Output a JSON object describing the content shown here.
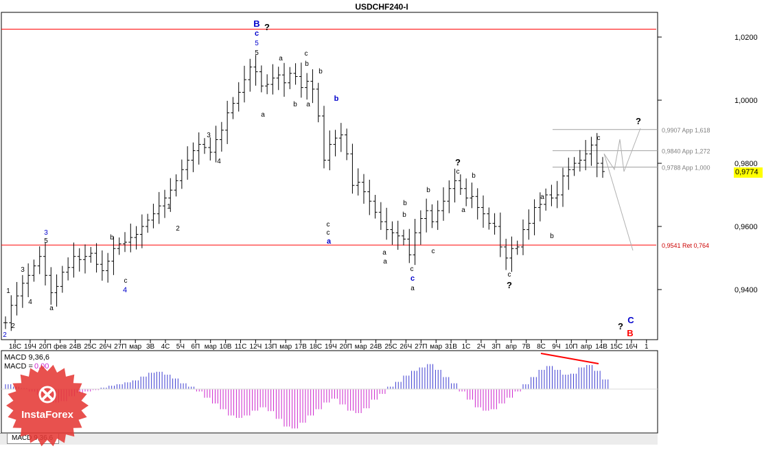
{
  "window": {
    "title": "USDCHF240-I"
  },
  "chart_data": [
    {
      "type": "candlestick",
      "title": "USDCHF240-I",
      "ylim": [
        0.93,
        1.01
      ],
      "y_ticks": [
        "1,0200",
        "1,0000",
        "0,9800",
        "0,9600",
        "0,9400"
      ],
      "x_ticks": [
        "18C",
        "19Ч",
        "20П",
        "фев",
        "24В",
        "25С",
        "26Ч",
        "27П",
        "мар",
        "3В",
        "4С",
        "5Ч",
        "6П",
        "мар",
        "10В",
        "11С",
        "12Ч",
        "13П",
        "мар",
        "17В",
        "18С",
        "19Ч",
        "20П",
        "мар",
        "24В",
        "25С",
        "26Ч",
        "27П",
        "мар",
        "31В",
        "1С",
        "2Ч",
        "3П",
        "апр",
        "7В",
        "8С",
        "9Ч",
        "10П",
        "апр",
        "14В",
        "15С",
        "16Ч",
        "1"
      ],
      "current_price": "0,9774",
      "close_path": [
        0.9295,
        0.935,
        0.938,
        0.942,
        0.9445,
        0.9475,
        0.9505,
        0.9445,
        0.939,
        0.941,
        0.9455,
        0.947,
        0.9505,
        0.9495,
        0.9505,
        0.9515,
        0.948,
        0.946,
        0.949,
        0.953,
        0.9545,
        0.955,
        0.9565,
        0.9575,
        0.96,
        0.962,
        0.964,
        0.9665,
        0.969,
        0.9715,
        0.9745,
        0.978,
        0.981,
        0.984,
        0.986,
        0.985,
        0.9835,
        0.9875,
        0.9905,
        0.996,
        0.999,
        1.0025,
        1.0065,
        1.0105,
        1.009,
        1.0045,
        1.005,
        1.007,
        1.008,
        1.0055,
        1.0085,
        1.0075,
        1.004,
        1.006,
        1.0035,
        0.995,
        0.981,
        0.986,
        0.988,
        0.989,
        0.983,
        0.973,
        0.974,
        0.971,
        0.968,
        0.9645,
        0.9615,
        0.959,
        0.958,
        0.957,
        0.956,
        0.951,
        0.958,
        0.9625,
        0.965,
        0.9615,
        0.965,
        0.968,
        0.972,
        0.9745,
        0.972,
        0.969,
        0.9695,
        0.966,
        0.964,
        0.961,
        0.96,
        0.9535,
        0.95,
        0.953,
        0.9535,
        0.959,
        0.961,
        0.966,
        0.967,
        0.97,
        0.969,
        0.97,
        0.976,
        0.978,
        0.98,
        0.981,
        0.983,
        0.9858,
        0.98,
        0.9774
      ],
      "hlines": [
        {
          "value": 1.0225,
          "color": "#ff0000",
          "label": ""
        },
        {
          "value": 0.9541,
          "color": "#ff0000",
          "label": "0,9541 Ret 0,764"
        },
        {
          "value": 0.9907,
          "color": "#a0a0a0",
          "label": "0,9907 App 1,618"
        },
        {
          "value": 0.984,
          "color": "#a0a0a0",
          "label": "0,9840 App 1,272"
        },
        {
          "value": 0.9788,
          "color": "#a0a0a0",
          "label": "0,9788 App 1,000"
        }
      ],
      "wave_labels": [
        {
          "text": "2",
          "color": "#0000cc"
        },
        {
          "text": "1",
          "color": "#000000"
        },
        {
          "text": "2",
          "color": "#000000"
        },
        {
          "text": "3",
          "color": "#000000"
        },
        {
          "text": "4",
          "color": "#000000"
        },
        {
          "text": "3",
          "color": "#0000cc"
        },
        {
          "text": "5",
          "color": "#000000"
        },
        {
          "text": "a",
          "color": "#000000"
        },
        {
          "text": "b",
          "color": "#000000"
        },
        {
          "text": "c",
          "color": "#000000"
        },
        {
          "text": "4",
          "color": "#0000cc"
        },
        {
          "text": "1",
          "color": "#000000"
        },
        {
          "text": "2",
          "color": "#000000"
        },
        {
          "text": "3",
          "color": "#000000"
        },
        {
          "text": "4",
          "color": "#000000"
        },
        {
          "text": "B",
          "color": "#0000cc"
        },
        {
          "text": "c",
          "color": "#0000cc"
        },
        {
          "text": "5",
          "color": "#0000cc"
        },
        {
          "text": "5",
          "color": "#000000"
        },
        {
          "text": "?",
          "color": "#000000"
        },
        {
          "text": "a",
          "color": "#000000"
        },
        {
          "text": "a",
          "color": "#000000"
        },
        {
          "text": "b",
          "color": "#000000"
        },
        {
          "text": "c",
          "color": "#000000"
        },
        {
          "text": "b",
          "color": "#000000"
        },
        {
          "text": "a",
          "color": "#000000"
        },
        {
          "text": "b",
          "color": "#000000"
        },
        {
          "text": "b",
          "color": "#0000cc"
        },
        {
          "text": "c",
          "color": "#000000"
        },
        {
          "text": "c",
          "color": "#000000"
        },
        {
          "text": "a",
          "color": "#0000cc"
        },
        {
          "text": "a",
          "color": "#000000"
        },
        {
          "text": "a",
          "color": "#000000"
        },
        {
          "text": "b",
          "color": "#000000"
        },
        {
          "text": "b",
          "color": "#000000"
        },
        {
          "text": "c",
          "color": "#000000"
        },
        {
          "text": "c",
          "color": "#000000"
        },
        {
          "text": "c",
          "color": "#0000cc"
        },
        {
          "text": "a",
          "color": "#000000"
        },
        {
          "text": "b",
          "color": "#000000"
        },
        {
          "text": "?",
          "color": "#000000"
        },
        {
          "text": "c",
          "color": "#000000"
        },
        {
          "text": "a",
          "color": "#000000"
        },
        {
          "text": "b",
          "color": "#000000"
        },
        {
          "text": "c",
          "color": "#000000"
        },
        {
          "text": "?",
          "color": "#000000"
        },
        {
          "text": "a",
          "color": "#000000"
        },
        {
          "text": "b",
          "color": "#000000"
        },
        {
          "text": "c",
          "color": "#000000"
        },
        {
          "text": "?",
          "color": "#000000"
        },
        {
          "text": "?",
          "color": "#000000"
        },
        {
          "text": "C",
          "color": "#0000cc"
        },
        {
          "text": "B",
          "color": "#ff0000"
        }
      ]
    },
    {
      "type": "bar",
      "title": "MACD 9,36,6",
      "signal_label": "MACD = ",
      "signal_value": "0,00",
      "histogram": [
        0.1,
        0.05,
        0.02,
        -0.05,
        -0.12,
        -0.22,
        -0.28,
        -0.25,
        -0.15,
        -0.08,
        -0.05,
        -0.02,
        0.03,
        0.07,
        0.1,
        0.14,
        0.18,
        0.26,
        0.34,
        0.36,
        0.3,
        0.22,
        0.12,
        0.05,
        -0.05,
        -0.18,
        -0.3,
        -0.42,
        -0.55,
        -0.6,
        -0.55,
        -0.45,
        -0.38,
        -0.46,
        -0.62,
        -0.78,
        -0.82,
        -0.7,
        -0.55,
        -0.42,
        -0.28,
        -0.2,
        -0.32,
        -0.45,
        -0.5,
        -0.4,
        -0.22,
        -0.1,
        0.05,
        0.15,
        0.28,
        0.38,
        0.45,
        0.52,
        0.4,
        0.25,
        0.12,
        -0.05,
        -0.22,
        -0.38,
        -0.45,
        -0.42,
        -0.3,
        -0.18,
        -0.05,
        0.1,
        0.25,
        0.4,
        0.48,
        0.4,
        0.3,
        0.32,
        0.45,
        0.5,
        0.38,
        0.2
      ],
      "annotation_color": "#ff0000"
    }
  ],
  "branding": {
    "logo_text": "InstaForex",
    "color": "#e53935"
  },
  "tabs": [
    {
      "label": "MACD 9,36,6"
    }
  ]
}
